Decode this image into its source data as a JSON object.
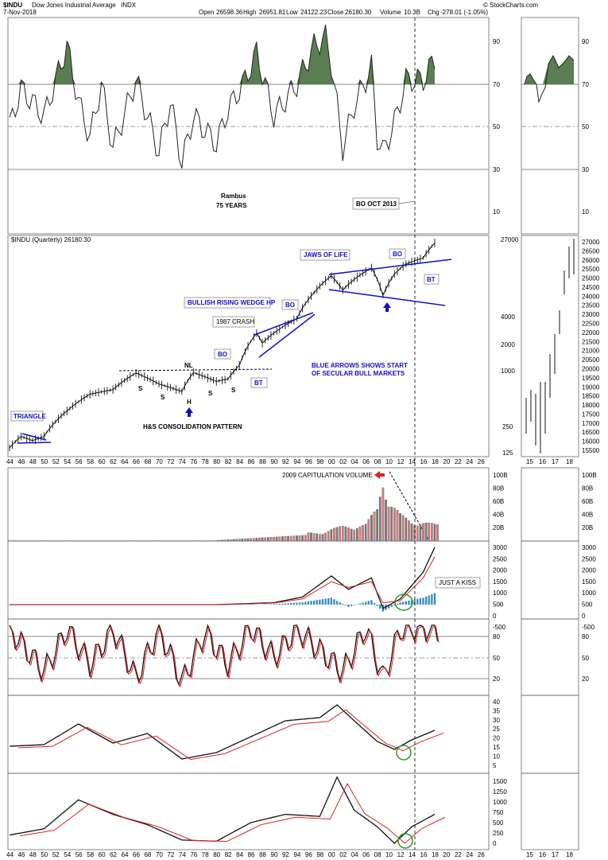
{
  "header": {
    "symbol": "$INDU",
    "name": "Dow Jones Industrial Average",
    "exchange": "INDX",
    "date": "7-Nov-2018",
    "open_label": "Open",
    "open": "26598.36",
    "high_label": "High",
    "high": "26951.81",
    "low_label": "Low",
    "low": "24122.23",
    "close_label": "Close",
    "close": "26180.30",
    "volume_label": "Volume",
    "volume": "10.3B",
    "chg_label": "Chg",
    "chg": "-278.01 (-1.05%)",
    "watermark": "© StockCharts.com"
  },
  "colors": {
    "rsi_fill": "#5a7d52",
    "blue_annot": "#1010c8",
    "vol_up": "#d97b7b",
    "vol_down": "#7a7a7a",
    "macd_hist": "#3b8ec2",
    "signal": "#e02020",
    "circle": "#2a9a2a"
  },
  "annotations": {
    "rambus": "Rambus",
    "years": "75 YEARS",
    "bo_oct": "BO OCT 2013",
    "price_legend": "$INDU (Quarterly) 26180.30",
    "jaws": "JAWS OF LIFE",
    "wedge": "BULLISH RISING WEDGE HP",
    "crash": "1987 CRASH",
    "bo": "BO",
    "bt": "BT",
    "nl": "NL",
    "s": "S",
    "h": "H",
    "triangle": "TRIANGLE",
    "hs": "H&S CONSOLIDATION PATTERN",
    "blue_arrows_1": "BLUE ARROWS SHOWS START",
    "blue_arrows_2": "OF SECULAR BULL MARKETS",
    "capitulation": "2009 CAPITULATION VOLUME",
    "kiss": "JUST A KISS"
  },
  "chart_data": [
    {
      "type": "line",
      "panel": "rsi",
      "x_ticks": [
        "44",
        "46",
        "48",
        "50",
        "52",
        "54",
        "56",
        "58",
        "60",
        "62",
        "64",
        "66",
        "68",
        "70",
        "72",
        "74",
        "76",
        "78",
        "80",
        "82",
        "84",
        "86",
        "88",
        "90",
        "92",
        "94",
        "96",
        "98",
        "00",
        "02",
        "04",
        "06",
        "08",
        "10",
        "12",
        "14",
        "16",
        "18",
        "20",
        "22",
        "24",
        "26"
      ],
      "y_ticks": [
        "90",
        "70",
        "50",
        "30",
        "10"
      ],
      "ylim": [
        0,
        100
      ],
      "series": [
        {
          "x": [
            1944,
            1946,
            1950,
            1954,
            1956,
            1958,
            1960,
            1962,
            1966,
            1970,
            1972,
            1974,
            1976,
            1980,
            1982,
            1985,
            1987,
            1990,
            1994,
            1997,
            1999,
            2000,
            2002,
            2004,
            2007,
            2008,
            2009,
            2011,
            2013,
            2016,
            2018
          ],
          "values": [
            50,
            68,
            55,
            88,
            62,
            45,
            70,
            40,
            72,
            38,
            62,
            33,
            55,
            42,
            58,
            72,
            85,
            55,
            70,
            88,
            92,
            80,
            40,
            60,
            78,
            45,
            38,
            52,
            72,
            72,
            82
          ]
        }
      ]
    },
    {
      "type": "line",
      "panel": "price",
      "y_ticks": [
        "27000",
        "26500",
        "26000",
        "25500",
        "25000",
        "24500",
        "24000",
        "23500",
        "23000",
        "22500",
        "22000",
        "21500",
        "21000",
        "20500",
        "20000",
        "19500",
        "19000",
        "18500",
        "18000",
        "17500",
        "17000",
        "16500",
        "16000",
        "15500"
      ],
      "series": [
        {
          "x": [
            1944,
            1946,
            1948,
            1950,
            1954,
            1958,
            1962,
            1966,
            1970,
            1974,
            1976,
            1980,
            1982,
            1984,
            1987,
            1988,
            1990,
            1994,
            1997,
            2000,
            2002,
            2004,
            2007,
            2009,
            2011,
            2013,
            2016,
            2018
          ],
          "values": [
            150,
            200,
            180,
            200,
            380,
            580,
            650,
            990,
            750,
            620,
            1000,
            800,
            850,
            1200,
            2700,
            2100,
            2700,
            3900,
            7500,
            11500,
            8000,
            10500,
            14000,
            7000,
            12000,
            15500,
            18000,
            26180
          ]
        }
      ]
    },
    {
      "type": "bar",
      "panel": "volume",
      "y_ticks": [
        "100B",
        "80B",
        "60B",
        "40B",
        "20B"
      ],
      "series": [
        {
          "x": [
            1998,
            2000,
            2002,
            2004,
            2006,
            2008,
            2009,
            2010,
            2012,
            2014,
            2016,
            2018
          ],
          "values": [
            12,
            18,
            22,
            22,
            25,
            50,
            100,
            60,
            40,
            30,
            28,
            25
          ]
        }
      ]
    },
    {
      "type": "line",
      "panel": "macd",
      "y_ticks": [
        "3000",
        "2500",
        "2000",
        "1500",
        "1000",
        "500",
        "0",
        "-500"
      ],
      "series": [
        {
          "x": [
            1944,
            1980,
            1990,
            1995,
            2000,
            2003,
            2007,
            2009,
            2012,
            2014,
            2016,
            2018
          ],
          "values": [
            0,
            0,
            100,
            400,
            1500,
            800,
            1400,
            -200,
            300,
            1000,
            1700,
            3000
          ]
        },
        {
          "x": [
            1944,
            1980,
            1990,
            1995,
            2000,
            2003,
            2007,
            2009,
            2012,
            2014,
            2016,
            2018
          ],
          "values": [
            0,
            0,
            80,
            300,
            1200,
            900,
            1200,
            100,
            200,
            800,
            1400,
            2500
          ]
        }
      ]
    },
    {
      "type": "line",
      "panel": "stochastic",
      "y_ticks": [
        "80",
        "50",
        "20"
      ],
      "series": [
        {
          "x": [
            1944,
            1950,
            1954,
            1958,
            1962,
            1966,
            1970,
            1974,
            1978,
            1982,
            1986,
            1990,
            1994,
            1998,
            2002,
            2006,
            2009,
            2012,
            2016,
            2018
          ],
          "values": [
            90,
            30,
            90,
            40,
            90,
            20,
            90,
            15,
            85,
            40,
            92,
            50,
            90,
            60,
            30,
            92,
            20,
            90,
            92,
            88
          ]
        }
      ]
    },
    {
      "type": "line",
      "panel": "adx1",
      "y_ticks": [
        "40",
        "35",
        "30",
        "25",
        "20",
        "15",
        "10",
        "5"
      ],
      "series": [
        {
          "x": [
            1944,
            1950,
            1956,
            1962,
            1968,
            1974,
            1980,
            1986,
            1992,
            1998,
            2001,
            2004,
            2008,
            2011,
            2014,
            2018
          ],
          "values": [
            12,
            13,
            26,
            14,
            20,
            4,
            8,
            18,
            28,
            30,
            38,
            28,
            15,
            10,
            16,
            22
          ]
        }
      ]
    },
    {
      "type": "line",
      "panel": "adx2",
      "y_ticks": [
        "1500",
        "1250",
        "1000",
        "750",
        "500",
        "250",
        "0"
      ],
      "series": [
        {
          "x": [
            1944,
            1950,
            1956,
            1962,
            1968,
            1974,
            1980,
            1986,
            1992,
            1998,
            2001,
            2004,
            2008,
            2011,
            2014,
            2018
          ],
          "values": [
            200,
            350,
            1050,
            700,
            450,
            80,
            50,
            500,
            700,
            650,
            1600,
            800,
            400,
            0,
            400,
            700
          ]
        }
      ]
    }
  ]
}
